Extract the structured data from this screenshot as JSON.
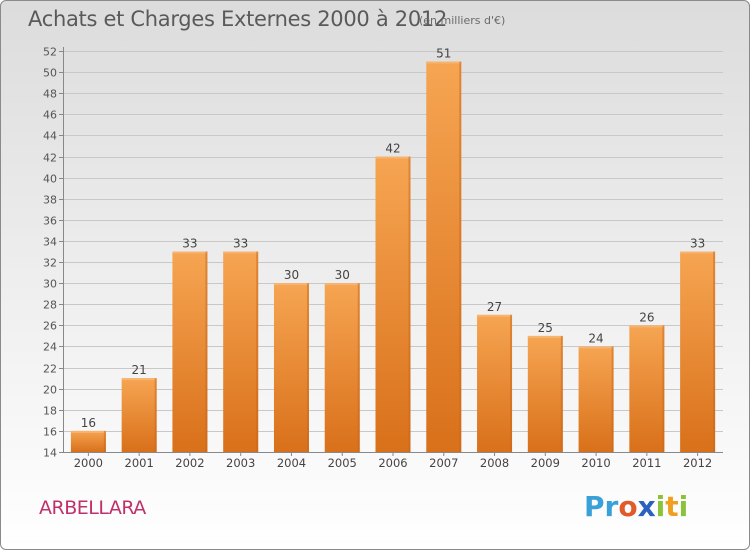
{
  "header": {
    "title": "Achats et Charges Externes 2000 à 2012",
    "subtitle": "(en milliers d'€)"
  },
  "footer": {
    "place": "ARBELLARA",
    "logo_letters": [
      {
        "ch": "P",
        "color": "#3aa0d8"
      },
      {
        "ch": "r",
        "color": "#3aa0d8"
      },
      {
        "ch": "o",
        "color": "#e05a2a"
      },
      {
        "ch": "x",
        "color": "#2a60c0"
      },
      {
        "ch": "i",
        "color": "#8ac33a"
      },
      {
        "ch": "t",
        "color": "#f0a020"
      },
      {
        "ch": "i",
        "color": "#8ac33a"
      }
    ]
  },
  "chart_data": {
    "type": "bar",
    "categories": [
      "2000",
      "2001",
      "2002",
      "2003",
      "2004",
      "2005",
      "2006",
      "2007",
      "2008",
      "2009",
      "2010",
      "2011",
      "2012"
    ],
    "values": [
      16,
      21,
      33,
      33,
      30,
      30,
      42,
      51,
      27,
      25,
      24,
      26,
      33
    ],
    "ylim": [
      14,
      52
    ],
    "yticks": [
      14,
      16,
      18,
      20,
      22,
      24,
      26,
      28,
      30,
      32,
      34,
      36,
      38,
      40,
      42,
      44,
      46,
      48,
      50,
      52
    ],
    "grid": true,
    "bar_color_top": "#f6a552",
    "bar_color_bottom": "#d9701a"
  }
}
